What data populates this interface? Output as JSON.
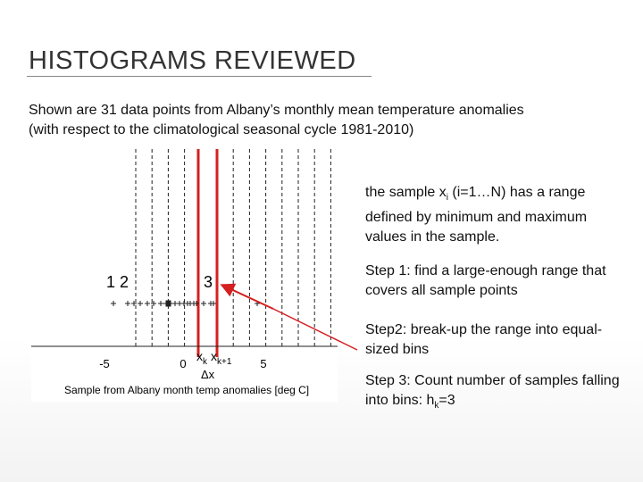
{
  "header": {
    "title": "HISTOGRAMS REVIEWED"
  },
  "subtitle": [
    "Shown are 31 data points from Albany’s monthly mean temperature anomalies",
    "(with respect to the climatological seasonal cycle 1981-2010)"
  ],
  "figure": {
    "x_ticks": [
      "-5",
      "0",
      "5"
    ],
    "x_label": "Sample from Albany month temp anomalies [deg C]",
    "count_labels": [
      "1 2",
      "3"
    ],
    "bin_edges": [
      "x",
      "k",
      "x",
      "k+1"
    ],
    "bin_width": "Δx"
  },
  "bullets": [
    {
      "parts": [
        "the sample x",
        "i",
        " (i=1…N) has a range defined by minimum and maximum values in the sample."
      ]
    },
    {
      "parts": [
        "Step 1: find a large-enough range that covers all sample points"
      ]
    },
    {
      "parts": [
        "Step2: break-up the range into equal-sized bins"
      ]
    },
    {
      "parts": [
        "Step 3: Count number of samples falling into bins: h",
        "k",
        "=3"
      ]
    }
  ]
}
